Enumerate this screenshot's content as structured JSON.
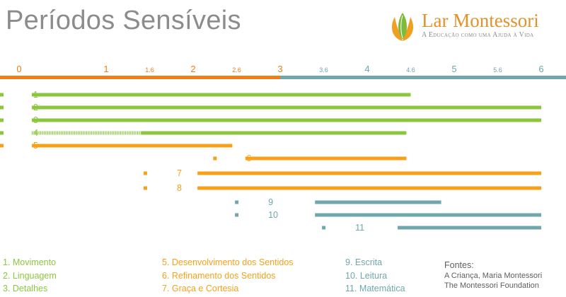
{
  "header": {
    "title": "Períodos Sensíveis",
    "logo_name": "Lar Montessori",
    "logo_tagline": "A Educação como uma Ajuda à Vida"
  },
  "colors": {
    "green": "#8cc63f",
    "orange": "#f7a11a",
    "teal": "#6fa7ac",
    "axis_orange": "#f07d1a",
    "axis_teal": "#6fa7ac"
  },
  "chart_data": {
    "type": "bar",
    "orientation": "horizontal-timeline",
    "x_ticks": [
      "0",
      "1",
      "1.6",
      "2",
      "2.6",
      "3",
      "3.6",
      "4",
      "4.6",
      "5",
      "5.6",
      "6"
    ],
    "x_tick_values": [
      0,
      1,
      1.5,
      2,
      2.5,
      3,
      3.5,
      4,
      4.5,
      5,
      5.5,
      6
    ],
    "xlim": [
      0,
      6
    ],
    "periods": [
      {
        "label": "1",
        "start": 0,
        "end": 4.5,
        "marker": 0,
        "color": "green"
      },
      {
        "label": "2",
        "start": 0,
        "end": 6,
        "marker": 0,
        "color": "green"
      },
      {
        "label": "3",
        "start": 0,
        "end": 6,
        "marker": 0,
        "color": "green"
      },
      {
        "label": "4",
        "start": 0,
        "end": 4.45,
        "dotted_until": 1.4,
        "marker": 0,
        "color": "green"
      },
      {
        "label": "5",
        "start": 0,
        "end": 2.45,
        "marker": 0,
        "color": "orange"
      },
      {
        "label": "6",
        "start": 2.6,
        "end": 4.45,
        "marker": 2.45,
        "color": "orange"
      },
      {
        "label": "7",
        "start": 2.05,
        "end": 6,
        "marker": 1.65,
        "color": "orange"
      },
      {
        "label": "8",
        "start": 2.05,
        "end": 6,
        "marker": 1.65,
        "color": "orange"
      },
      {
        "label": "9",
        "start": 3.4,
        "end": 4.85,
        "marker": 2.7,
        "color": "teal"
      },
      {
        "label": "10",
        "start": 3.4,
        "end": 6,
        "marker": 2.7,
        "color": "teal"
      },
      {
        "label": "11",
        "start": 4.35,
        "end": 6,
        "marker": 3.7,
        "color": "teal"
      }
    ]
  },
  "legend": {
    "col1": [
      "1. Movimento",
      "2. Linguagem",
      "3. Detalhes"
    ],
    "col2": [
      "5. Desenvolvimento dos Sentidos",
      "6. Refinamento dos Sentidos",
      "7. Graça e Cortesia"
    ],
    "col3": [
      "9. Escrita",
      "10. Leitura",
      "11. Matemática"
    ]
  },
  "sources": {
    "title": "Fontes:",
    "lines": [
      "A Criança, Maria Montessori",
      "The Montessori Foundation"
    ]
  }
}
